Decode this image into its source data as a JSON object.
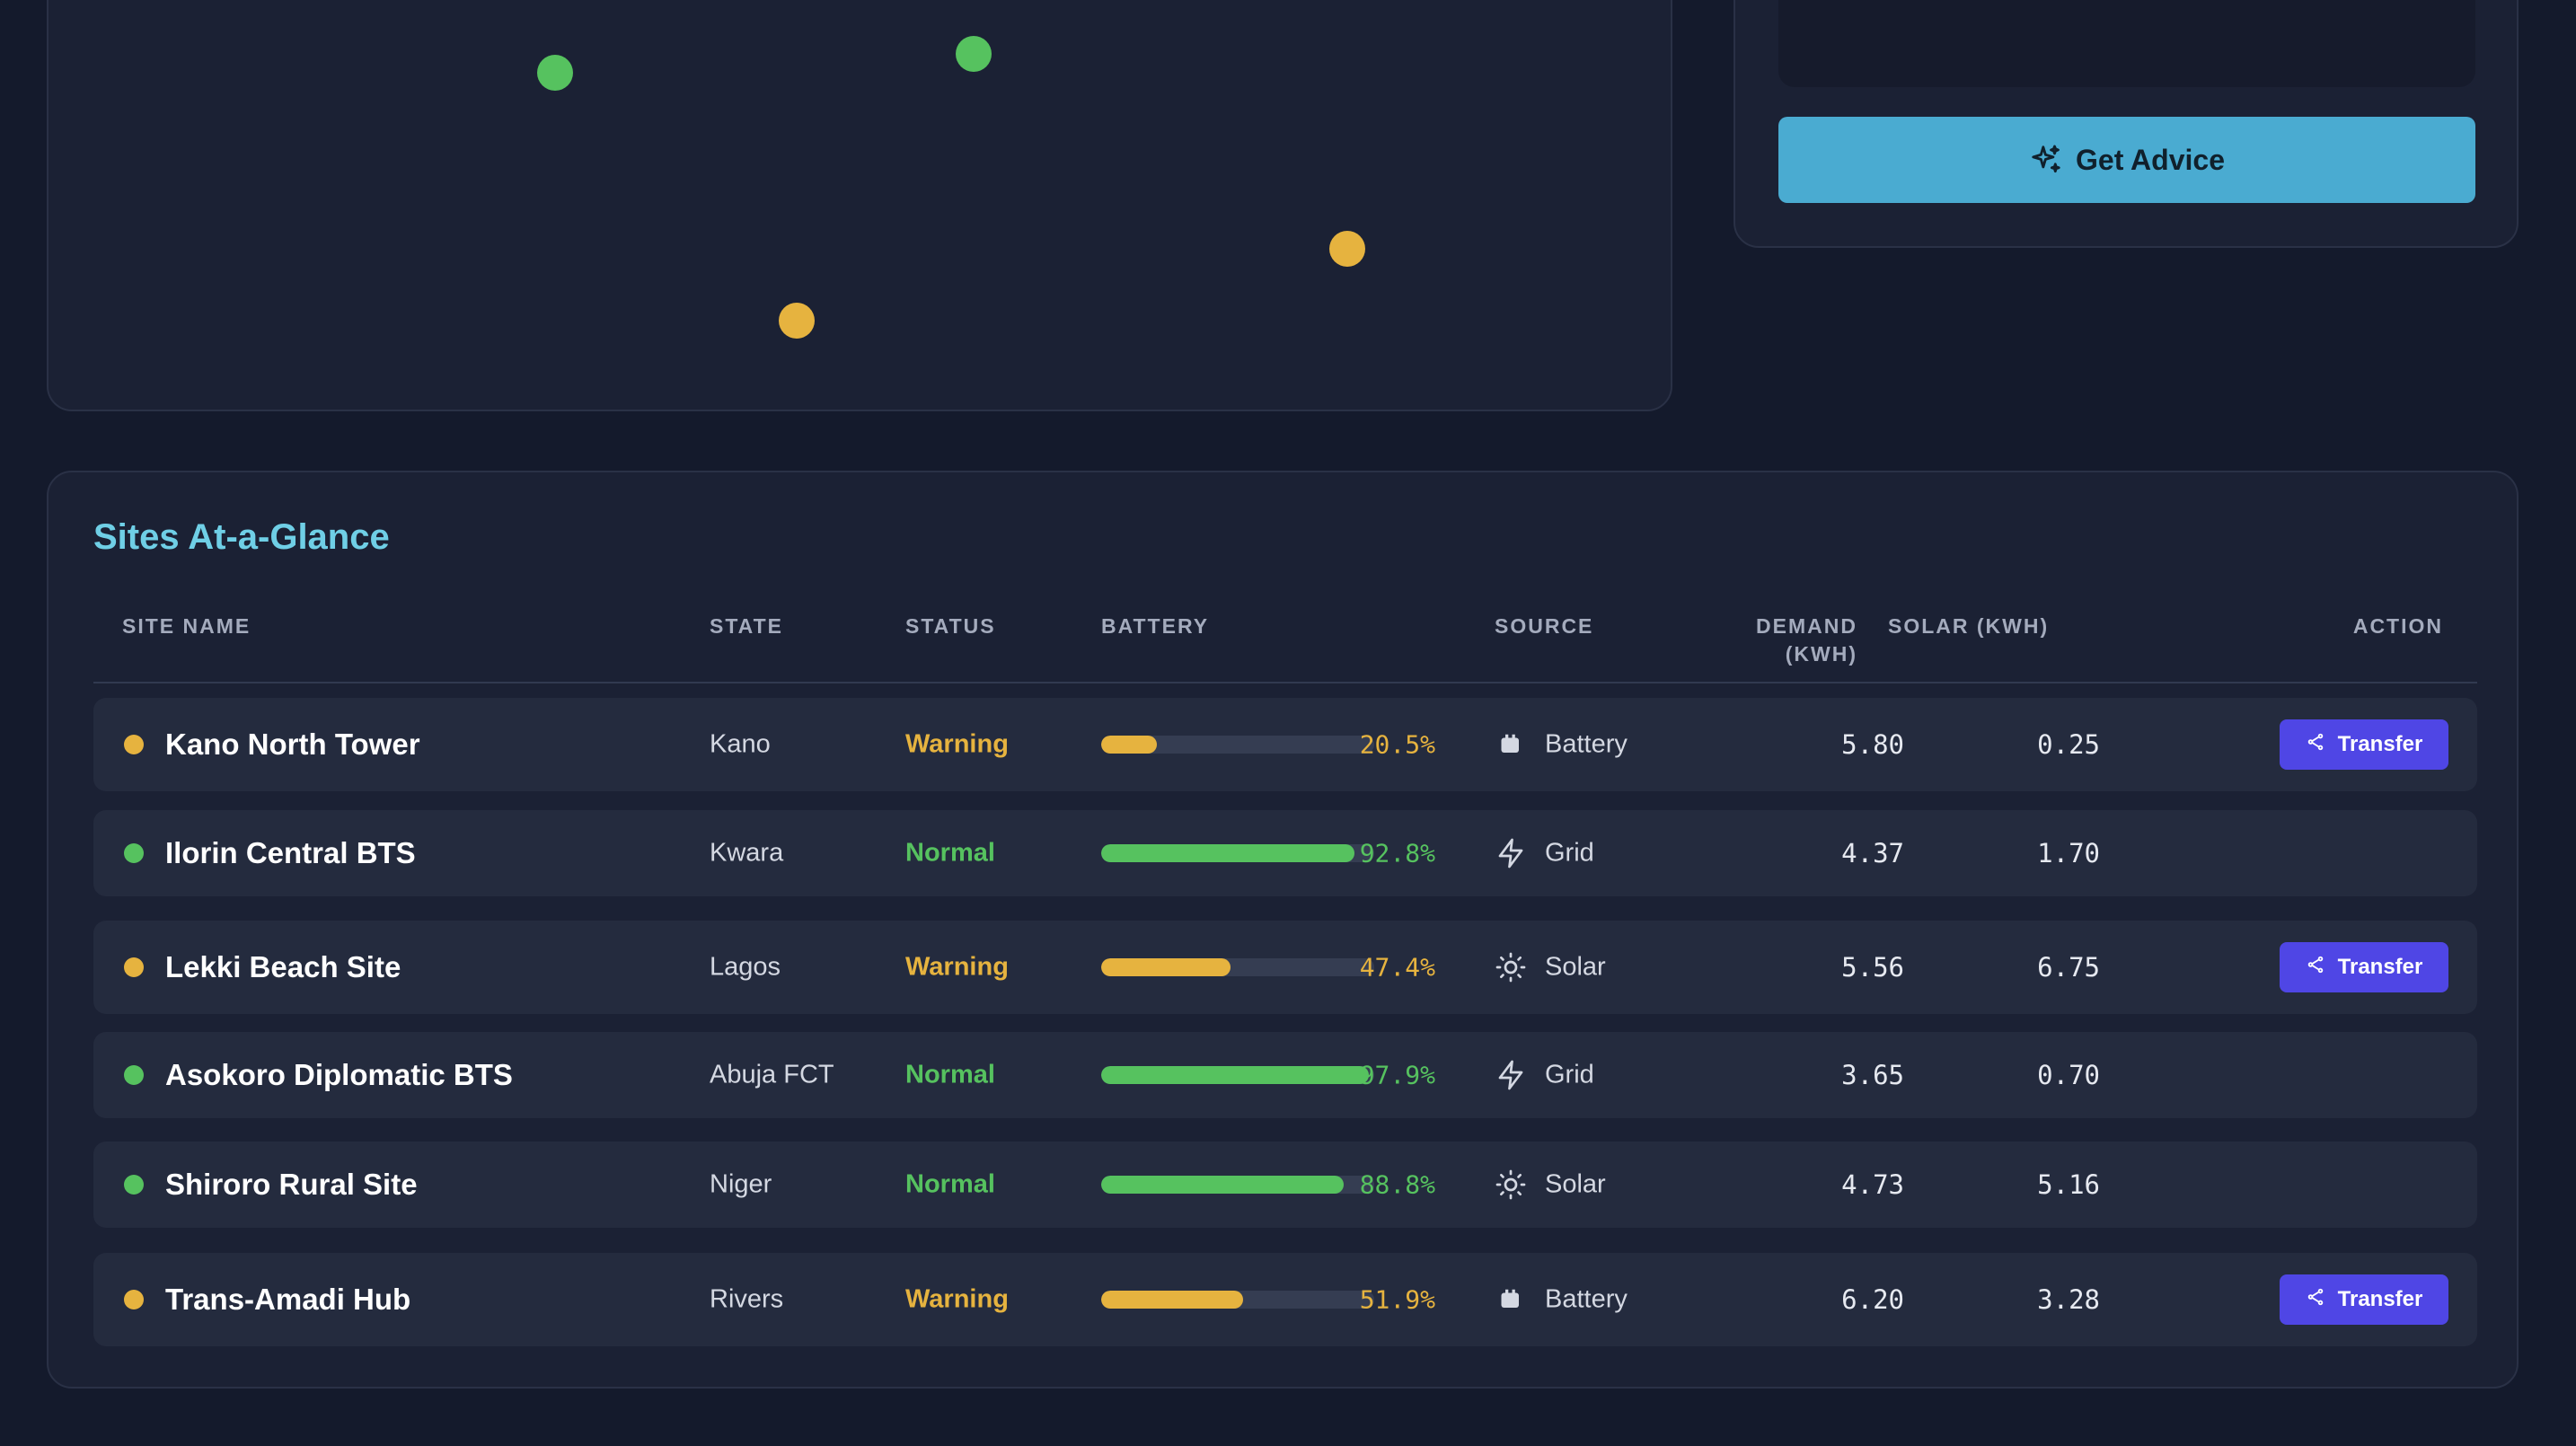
{
  "colors": {
    "normal": "#56c25f",
    "warning": "#e6b33f",
    "accent": "#6fcfe6",
    "advice_button": "#4aabd1",
    "transfer_button": "#4f46e5"
  },
  "map": {
    "markers": [
      {
        "status": "Normal"
      },
      {
        "status": "Normal"
      },
      {
        "status": "Warning"
      },
      {
        "status": "Warning"
      }
    ]
  },
  "advice": {
    "button_label": "Get Advice",
    "button_icon": "sparkles-icon"
  },
  "sites": {
    "title": "Sites At-a-Glance",
    "columns": {
      "site_name": "SITE NAME",
      "state": "STATE",
      "status": "STATUS",
      "battery": "BATTERY",
      "source": "SOURCE",
      "demand": "DEMAND\n(KWH)",
      "solar": "SOLAR (KWH)",
      "action": "ACTION"
    },
    "transfer_label": "Transfer",
    "transfer_icon": "share-icon",
    "rows": [
      {
        "name": "Kano North Tower",
        "state": "Kano",
        "status": "Warning",
        "battery_pct": 20.5,
        "battery_label": "20.5%",
        "source": "Battery",
        "source_icon": "battery-icon",
        "demand": "5.80",
        "solar": "0.25",
        "action": "Transfer"
      },
      {
        "name": "Ilorin Central BTS",
        "state": "Kwara",
        "status": "Normal",
        "battery_pct": 92.8,
        "battery_label": "92.8%",
        "source": "Grid",
        "source_icon": "lightning-icon",
        "demand": "4.37",
        "solar": "1.70",
        "action": ""
      },
      {
        "name": "Lekki Beach Site",
        "state": "Lagos",
        "status": "Warning",
        "battery_pct": 47.4,
        "battery_label": "47.4%",
        "source": "Solar",
        "source_icon": "sun-icon",
        "demand": "5.56",
        "solar": "6.75",
        "action": "Transfer"
      },
      {
        "name": "Asokoro Diplomatic BTS",
        "state": "Abuja FCT",
        "status": "Normal",
        "battery_pct": 97.9,
        "battery_label": "97.9%",
        "source": "Grid",
        "source_icon": "lightning-icon",
        "demand": "3.65",
        "solar": "0.70",
        "action": ""
      },
      {
        "name": "Shiroro Rural Site",
        "state": "Niger",
        "status": "Normal",
        "battery_pct": 88.8,
        "battery_label": "88.8%",
        "source": "Solar",
        "source_icon": "sun-icon",
        "demand": "4.73",
        "solar": "5.16",
        "action": ""
      },
      {
        "name": "Trans-Amadi Hub",
        "state": "Rivers",
        "status": "Warning",
        "battery_pct": 51.9,
        "battery_label": "51.9%",
        "source": "Battery",
        "source_icon": "battery-icon",
        "demand": "6.20",
        "solar": "3.28",
        "action": "Transfer"
      }
    ]
  }
}
